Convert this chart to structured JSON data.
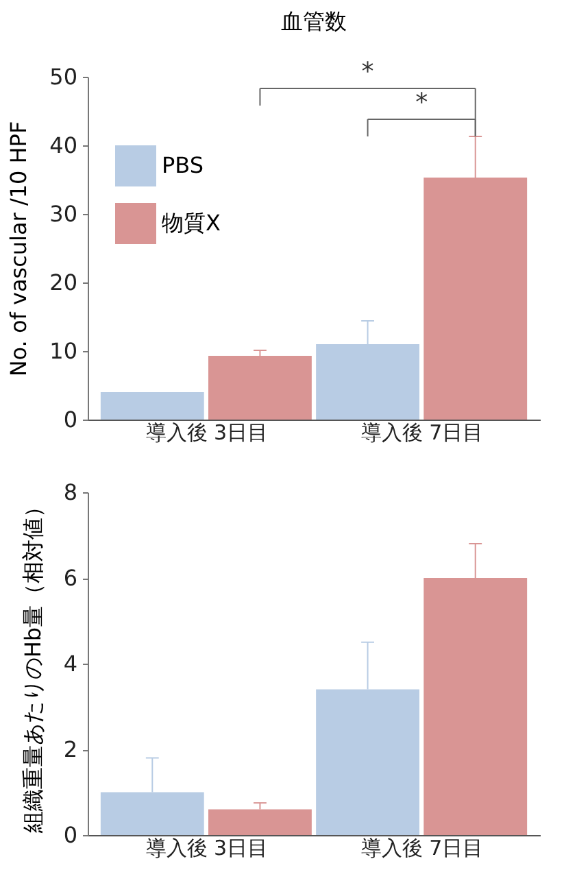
{
  "chart_data": [
    {
      "type": "bar",
      "title": "血管数",
      "ylabel": "No. of vascular /10 HPF",
      "categories": [
        "導入後 3日目",
        "導入後 7日目"
      ],
      "series": [
        {
          "name": "PBS",
          "color": "#b8cce4",
          "values": [
            4.0,
            11.0
          ],
          "errors": [
            null,
            [
              11.0,
              14.4
            ]
          ]
        },
        {
          "name": "物質X",
          "color": "#d99594",
          "values": [
            9.3,
            35.3
          ],
          "errors": [
            [
              9.3,
              10.1
            ],
            [
              35.3,
              41.3
            ]
          ]
        }
      ],
      "ylim": [
        0,
        50
      ],
      "yticks": [
        0,
        10,
        20,
        30,
        40,
        50
      ],
      "legend": "top left",
      "annotations": [
        "*",
        "*"
      ]
    },
    {
      "type": "bar",
      "ylabel": "組織重量あたりのHb量（相対値）",
      "categories": [
        "導入後 3日目",
        "導入後 7日目"
      ],
      "series": [
        {
          "color": "#b8cce4",
          "values": [
            1.0,
            3.4
          ],
          "errors": [
            [
              1.0,
              1.8
            ],
            [
              3.4,
              4.5
            ]
          ]
        },
        {
          "color": "#d99594",
          "values": [
            0.6,
            6.0
          ],
          "errors": [
            [
              0.6,
              0.75
            ],
            [
              6.0,
              6.8
            ]
          ]
        }
      ],
      "ylim": [
        0,
        8
      ],
      "yticks": [
        0,
        2,
        4,
        6,
        8
      ]
    }
  ]
}
